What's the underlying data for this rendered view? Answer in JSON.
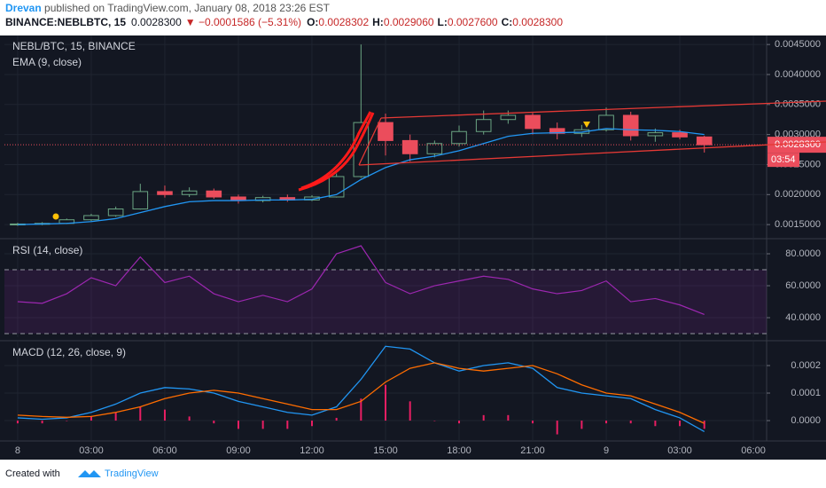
{
  "header": {
    "author": "Drevan",
    "published": " published on TradingView.com, January 08, 2018 23:26 EST",
    "symbol": "BINANCE:NEBLBTC, 15",
    "last": "0.0028300",
    "change": "▼ −0.0001586 (−5.31%)",
    "o_label": "O:",
    "open": "0.0028302",
    "h_label": "H:",
    "high": "0.0029060",
    "l_label": "L:",
    "low": "0.0027600",
    "c_label": "C:",
    "close": "0.0028300"
  },
  "chart_data": [
    {
      "type": "candlestick",
      "title": "NEBL/BTC, 15, BINANCE",
      "subtitle": "EMA (9, close)",
      "x": [
        0,
        1,
        2,
        3,
        4,
        5,
        6,
        7,
        8,
        9,
        10,
        11,
        12,
        13,
        14,
        15,
        16,
        17,
        18,
        19,
        20,
        21,
        22,
        23,
        24,
        25,
        26,
        27,
        28
      ],
      "xlim": [
        -0.54,
        30.54
      ],
      "xticks": [
        {
          "value": 0,
          "label": "8"
        },
        {
          "value": 3,
          "label": "03:00"
        },
        {
          "value": 6,
          "label": "06:00"
        },
        {
          "value": 9,
          "label": "09:00"
        },
        {
          "value": 12,
          "label": "12:00"
        },
        {
          "value": 15,
          "label": "15:00"
        },
        {
          "value": 18,
          "label": "18:00"
        },
        {
          "value": 21,
          "label": "21:00"
        },
        {
          "value": 24,
          "label": "9"
        },
        {
          "value": 27,
          "label": "03:00"
        },
        {
          "value": 30,
          "label": "06:00"
        }
      ],
      "open": [
        0.0015,
        0.00151,
        0.00152,
        0.00158,
        0.00165,
        0.00176,
        0.00205,
        0.002,
        0.00206,
        0.00196,
        0.0019,
        0.00195,
        0.00191,
        0.00196,
        0.0023,
        0.0032,
        0.0029,
        0.00268,
        0.00285,
        0.00305,
        0.00325,
        0.00332,
        0.0031,
        0.00302,
        0.00308,
        0.00332,
        0.00298,
        0.00303,
        0.00296
      ],
      "high": [
        0.00153,
        0.00154,
        0.0016,
        0.00168,
        0.0018,
        0.00218,
        0.00215,
        0.00212,
        0.0021,
        0.002,
        0.00198,
        0.002,
        0.00199,
        0.00235,
        0.0045,
        0.00335,
        0.003,
        0.0029,
        0.00315,
        0.0034,
        0.0034,
        0.00336,
        0.0032,
        0.00316,
        0.00345,
        0.00338,
        0.0031,
        0.00308,
        0.00298
      ],
      "low": [
        0.00148,
        0.00149,
        0.00151,
        0.00156,
        0.00163,
        0.00175,
        0.00195,
        0.00196,
        0.00193,
        0.00185,
        0.00187,
        0.00188,
        0.00189,
        0.00195,
        0.00228,
        0.00265,
        0.00255,
        0.00262,
        0.0028,
        0.003,
        0.00318,
        0.003,
        0.00292,
        0.00296,
        0.00305,
        0.0029,
        0.00288,
        0.00292,
        0.0027
      ],
      "close": [
        0.00151,
        0.00152,
        0.00158,
        0.00165,
        0.00176,
        0.00205,
        0.002,
        0.00206,
        0.00196,
        0.0019,
        0.00195,
        0.00191,
        0.00196,
        0.0023,
        0.0032,
        0.0029,
        0.00268,
        0.00285,
        0.00305,
        0.00325,
        0.00332,
        0.0031,
        0.00302,
        0.00308,
        0.00332,
        0.00298,
        0.00303,
        0.00296,
        0.00283
      ],
      "ema": [
        0.0015,
        0.00151,
        0.00152,
        0.00155,
        0.0016,
        0.0017,
        0.0018,
        0.00188,
        0.0019,
        0.0019,
        0.00191,
        0.00191,
        0.00192,
        0.002,
        0.00225,
        0.00245,
        0.00258,
        0.00264,
        0.00273,
        0.00285,
        0.00297,
        0.00302,
        0.00303,
        0.00304,
        0.0031,
        0.00308,
        0.00307,
        0.00305,
        0.003
      ],
      "up_color": "#6ba583",
      "down_color": "#eb4d5c",
      "ema_color": "#2196f3",
      "ylim": [
        0.00128,
        0.00465
      ],
      "yticks": [
        {
          "value": 0.0015,
          "label": "0.0015000"
        },
        {
          "value": 0.002,
          "label": "0.0020000"
        },
        {
          "value": 0.0025,
          "label": "0.0025000"
        },
        {
          "value": 0.003,
          "label": "0.0030000"
        },
        {
          "value": 0.0035,
          "label": "0.0035000"
        },
        {
          "value": 0.004,
          "label": "0.0040000"
        },
        {
          "value": 0.0045,
          "label": "0.0045000"
        }
      ],
      "price_label": "0.0028300",
      "countdown": "03:54",
      "grid": true
    },
    {
      "type": "line",
      "title": "RSI (14, close)",
      "values": [
        50,
        49,
        55,
        65,
        60,
        78,
        62,
        66,
        55,
        50,
        54,
        50,
        58,
        80,
        85,
        62,
        55,
        60,
        63,
        66,
        64,
        58,
        55,
        57,
        63,
        50,
        52,
        48,
        42
      ],
      "color": "#9c27b0",
      "bands": [
        70,
        30
      ],
      "band_color": "#9c27b0",
      "ylim": [
        27.8,
        88.9
      ],
      "yticks": [
        {
          "value": 40,
          "label": "40.0000"
        },
        {
          "value": 60,
          "label": "60.0000"
        },
        {
          "value": 80,
          "label": "80.0000"
        }
      ],
      "grid": true
    },
    {
      "type": "macd",
      "title": "MACD (12, 26, close, 9)",
      "series": [
        {
          "name": "Histogram",
          "color": "#e91e63",
          "values": [
            -1e-05,
            -1e-05,
            0,
            1.5e-05,
            3e-05,
            5e-05,
            4e-05,
            1.5e-05,
            -1e-05,
            -3e-05,
            -3e-05,
            -3e-05,
            -2e-05,
            1e-05,
            8e-05,
            0.00013,
            7e-05,
            0,
            -1e-05,
            2e-05,
            2e-05,
            -1e-05,
            -5e-05,
            -3e-05,
            -1e-05,
            -1e-05,
            -2e-05,
            -2e-05,
            -3e-05
          ]
        },
        {
          "name": "MACD",
          "color": "#2196f3",
          "values": [
            1e-05,
            5e-06,
            1e-05,
            3e-05,
            6e-05,
            0.0001,
            0.00012,
            0.000115,
            0.0001,
            7e-05,
            5e-05,
            3e-05,
            2e-05,
            5e-05,
            0.00015,
            0.00027,
            0.00026,
            0.00021,
            0.00018,
            0.0002,
            0.00021,
            0.00019,
            0.00012,
            0.0001,
            9e-05,
            8e-05,
            4e-05,
            1e-05,
            -4e-05
          ]
        },
        {
          "name": "Signal",
          "color": "#ff6d00",
          "values": [
            2e-05,
            1.5e-05,
            1.2e-05,
            1.5e-05,
            3e-05,
            5e-05,
            8e-05,
            0.0001,
            0.00011,
            0.0001,
            8e-05,
            6e-05,
            4e-05,
            4e-05,
            7e-05,
            0.00014,
            0.00019,
            0.00021,
            0.00019,
            0.00018,
            0.00019,
            0.0002,
            0.00017,
            0.00013,
            0.0001,
            9e-05,
            6e-05,
            3e-05,
            -1e-05
          ]
        }
      ],
      "ylim": [
        -7.4e-05,
        0.000287
      ],
      "yticks": [
        {
          "value": 0,
          "label": "0.0000"
        },
        {
          "value": 0.0001,
          "label": "0.0001"
        },
        {
          "value": 0.0002,
          "label": "0.0002"
        }
      ],
      "grid": true
    }
  ],
  "footer": {
    "created": "Created with",
    "brand": "TradingView"
  }
}
